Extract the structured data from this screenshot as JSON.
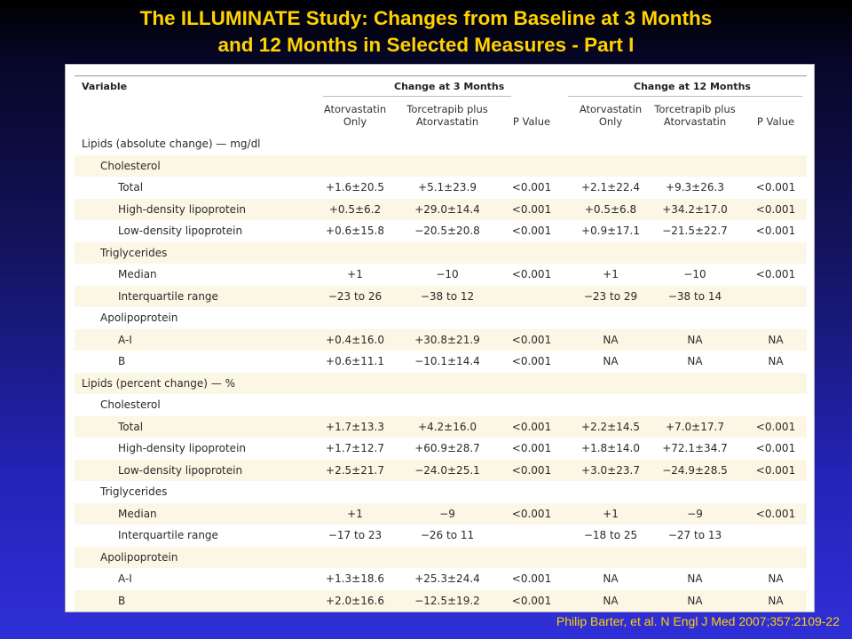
{
  "title": {
    "line1": "The ILLUMINATE  Study: Changes from Baseline at 3 Months",
    "line2": "and 12 Months in Selected Measures - Part I"
  },
  "table": {
    "variable_header": "Variable",
    "group_3m": "Change at 3 Months",
    "group_12m": "Change at 12 Months",
    "columns": [
      [
        "Atorvastatin",
        "Only"
      ],
      [
        "Torcetrapib plus",
        "Atorvastatin"
      ],
      [
        "P Value"
      ],
      [
        "Atorvastatin",
        "Only"
      ],
      [
        "Torcetrapib plus",
        "Atorvastatin"
      ],
      [
        "P Value"
      ]
    ],
    "rows": [
      {
        "label": "Lipids (absolute change) — mg/dl",
        "level": 0,
        "values": []
      },
      {
        "label": "Cholesterol",
        "level": 1,
        "values": []
      },
      {
        "label": "Total",
        "level": 2,
        "values": [
          "+1.6±20.5",
          "+5.1±23.9",
          "<0.001",
          "+2.1±22.4",
          "+9.3±26.3",
          "<0.001"
        ]
      },
      {
        "label": "High-density lipoprotein",
        "level": 2,
        "values": [
          "+0.5±6.2",
          "+29.0±14.4",
          "<0.001",
          "+0.5±6.8",
          "+34.2±17.0",
          "<0.001"
        ]
      },
      {
        "label": "Low-density lipoprotein",
        "level": 2,
        "values": [
          "+0.6±15.8",
          "−20.5±20.8",
          "<0.001",
          "+0.9±17.1",
          "−21.5±22.7",
          "<0.001"
        ]
      },
      {
        "label": "Triglycerides",
        "level": 1,
        "values": []
      },
      {
        "label": "Median",
        "level": 2,
        "values": [
          "+1",
          "−10",
          "<0.001",
          "+1",
          "−10",
          "<0.001"
        ]
      },
      {
        "label": "Interquartile range",
        "level": 2,
        "values": [
          "−23 to 26",
          "−38 to 12",
          "",
          "−23 to 29",
          "−38 to 14",
          ""
        ]
      },
      {
        "label": "Apolipoprotein",
        "level": 1,
        "values": []
      },
      {
        "label": "A-I",
        "level": 2,
        "values": [
          "+0.4±16.0",
          "+30.8±21.9",
          "<0.001",
          "NA",
          "NA",
          "NA"
        ]
      },
      {
        "label": "B",
        "level": 2,
        "values": [
          "+0.6±11.1",
          "−10.1±14.4",
          "<0.001",
          "NA",
          "NA",
          "NA"
        ]
      },
      {
        "label": "Lipids (percent change) — %",
        "level": 0,
        "values": []
      },
      {
        "label": "Cholesterol",
        "level": 1,
        "values": []
      },
      {
        "label": "Total",
        "level": 2,
        "values": [
          "+1.7±13.3",
          "+4.2±16.0",
          "<0.001",
          "+2.2±14.5",
          "+7.0±17.7",
          "<0.001"
        ]
      },
      {
        "label": "High-density lipoprotein",
        "level": 2,
        "values": [
          "+1.7±12.7",
          "+60.9±28.7",
          "<0.001",
          "+1.8±14.0",
          "+72.1±34.7",
          "<0.001"
        ]
      },
      {
        "label": "Low-density lipoprotein",
        "level": 2,
        "values": [
          "+2.5±21.7",
          "−24.0±25.1",
          "<0.001",
          "+3.0±23.7",
          "−24.9±28.5",
          "<0.001"
        ]
      },
      {
        "label": "Triglycerides",
        "level": 1,
        "values": []
      },
      {
        "label": "Median",
        "level": 2,
        "values": [
          "+1",
          "−9",
          "<0.001",
          "+1",
          "−9",
          "<0.001"
        ]
      },
      {
        "label": "Interquartile range",
        "level": 2,
        "values": [
          "−17 to 23",
          "−26 to 11",
          "",
          "−18 to 25",
          "−27 to 13",
          ""
        ]
      },
      {
        "label": "Apolipoprotein",
        "level": 1,
        "values": []
      },
      {
        "label": "A-I",
        "level": 2,
        "values": [
          "+1.3±18.6",
          "+25.3±24.4",
          "<0.001",
          "NA",
          "NA",
          "NA"
        ]
      },
      {
        "label": "B",
        "level": 2,
        "values": [
          "+2.0±16.6",
          "−12.5±19.2",
          "<0.001",
          "NA",
          "NA",
          "NA"
        ]
      }
    ]
  },
  "citation": "Philip Barter, et al. N Engl J Med 2007;357:2109-22",
  "colors": {
    "title": "#ffd200",
    "citation": "#ffd200",
    "row_shade": "#fcf6e4",
    "panel": "#ffffff"
  }
}
